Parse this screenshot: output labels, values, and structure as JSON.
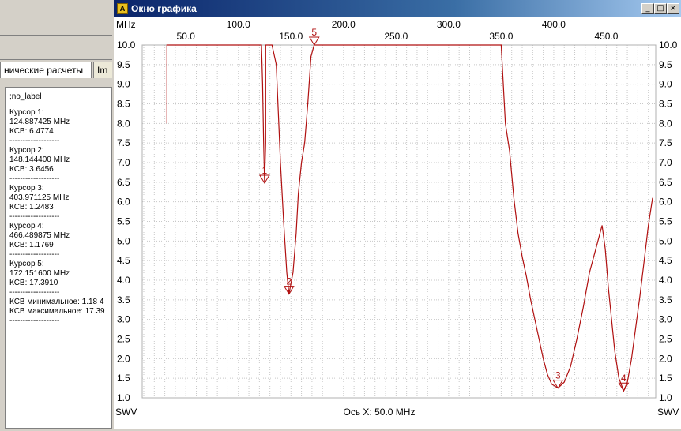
{
  "left_panel": {
    "tabs": [
      {
        "label": "нические расчеты"
      },
      {
        "label": "Im"
      }
    ],
    "info_lines": [
      ";no_label",
      "",
      "Курсор 1:",
      "124.887425 MHz",
      "КСВ: 6.4774",
      "-------------------",
      "Курсор 2:",
      "148.144400 MHz",
      "КСВ: 3.6456",
      "-------------------",
      "Курсор 3:",
      "403.971125 MHz",
      "КСВ: 1.2483",
      "-------------------",
      "Курсор 4:",
      "466.489875 MHz",
      "КСВ: 1.1769",
      "-------------------",
      "Курсор 5:",
      "172.151600 MHz",
      "КСВ: 17.3910",
      "-------------------",
      "КСВ минимальное: 1.18  4",
      "КСВ максимальное: 17.39",
      "-------------------"
    ]
  },
  "window": {
    "title": "Окно графика",
    "icon_glyph": "A",
    "min_glyph": "_",
    "max_glyph": "□",
    "close_glyph": "×"
  },
  "chart_data": {
    "type": "line",
    "x_unit_label": "MHz",
    "y_left_label": "SWV",
    "y_right_label": "SWV",
    "x_readout": "Ось X: 50.0 MHz",
    "xlim": [
      20,
      480
    ],
    "ylim": [
      1.0,
      10.0
    ],
    "x_ticks_top": [
      "100.0",
      "200.0",
      "300.0",
      "400.0"
    ],
    "x_ticks_bottom": [
      "50.0",
      "150.0",
      "250.0",
      "350.0",
      "450.0"
    ],
    "y_ticks": [
      "1.0",
      "1.5",
      "2.0",
      "2.5",
      "3.0",
      "3.5",
      "4.0",
      "4.5",
      "5.0",
      "5.5",
      "6.0",
      "6.5",
      "7.0",
      "7.5",
      "8.0",
      "8.5",
      "9.0",
      "9.5",
      "10.0"
    ],
    "grid": true,
    "line_color": "#b01010",
    "series": [
      {
        "points": [
          [
            32,
            8.0
          ],
          [
            32,
            10.0
          ],
          [
            122,
            10.0
          ],
          [
            123,
            9.0
          ],
          [
            124,
            7.5
          ],
          [
            124.9,
            6.5
          ],
          [
            126,
            7.5
          ],
          [
            126,
            10.0
          ],
          [
            132,
            10.0
          ],
          [
            136,
            9.5
          ],
          [
            140,
            7.0
          ],
          [
            143,
            5.5
          ],
          [
            146,
            4.2
          ],
          [
            148.1,
            3.65
          ],
          [
            152,
            4.2
          ],
          [
            155,
            5.2
          ],
          [
            157,
            6.2
          ],
          [
            160,
            7.0
          ],
          [
            163,
            7.5
          ],
          [
            166,
            8.5
          ],
          [
            169,
            9.7
          ],
          [
            172,
            10.0
          ],
          [
            184,
            10.0
          ],
          [
            350,
            10.0
          ],
          [
            354,
            8.0
          ],
          [
            358,
            7.3
          ],
          [
            362,
            6.1
          ],
          [
            366,
            5.2
          ],
          [
            370,
            4.6
          ],
          [
            374,
            4.1
          ],
          [
            378,
            3.5
          ],
          [
            382,
            3.0
          ],
          [
            386,
            2.5
          ],
          [
            390,
            2.0
          ],
          [
            394,
            1.6
          ],
          [
            398,
            1.35
          ],
          [
            404,
            1.25
          ],
          [
            410,
            1.4
          ],
          [
            416,
            1.8
          ],
          [
            422,
            2.5
          ],
          [
            428,
            3.3
          ],
          [
            434,
            4.2
          ],
          [
            440,
            4.8
          ],
          [
            446,
            5.4
          ],
          [
            449,
            4.8
          ],
          [
            452,
            3.8
          ],
          [
            455,
            3.0
          ],
          [
            458,
            2.2
          ],
          [
            462,
            1.5
          ],
          [
            466.5,
            1.18
          ],
          [
            470,
            1.4
          ],
          [
            474,
            2.0
          ],
          [
            478,
            2.8
          ],
          [
            482,
            3.6
          ],
          [
            486,
            4.5
          ],
          [
            490,
            5.4
          ],
          [
            494,
            6.1
          ]
        ]
      }
    ],
    "markers": [
      {
        "label": "1",
        "x": 124.887425,
        "y": 6.4774
      },
      {
        "label": "2",
        "x": 148.1444,
        "y": 3.6456
      },
      {
        "label": "3",
        "x": 403.971125,
        "y": 1.2483
      },
      {
        "label": "4",
        "x": 466.489875,
        "y": 1.1769
      },
      {
        "label": "5",
        "x": 172.1516,
        "y": 10.0
      }
    ]
  }
}
